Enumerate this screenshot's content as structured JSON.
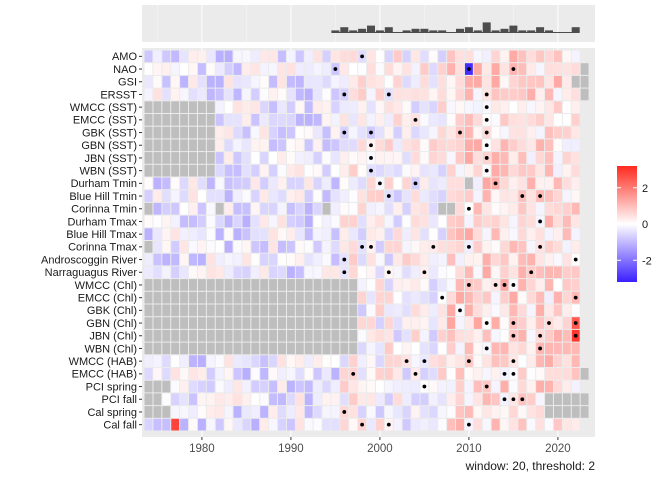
{
  "chart_data": {
    "type": "heatmap",
    "title": "",
    "xlabel": "",
    "ylabel": "",
    "caption": "window: 20, threshold: 2",
    "x_ticks": [
      1980,
      1990,
      2000,
      2010,
      2020
    ],
    "xlim": [
      1973.5,
      2025
    ],
    "row_names": [
      "AMO",
      "NAO",
      "GSI",
      "ERSST",
      "WMCC (SST)",
      "EMCC (SST)",
      "GBK (SST)",
      "GBN (SST)",
      "JBN (SST)",
      "WBN (SST)",
      "Durham Tmin",
      "Blue Hill Tmin",
      "Corinna Tmin",
      "Durham Tmax",
      "Blue Hill Tmax",
      "Corinna Tmax",
      "Androscoggin River",
      "Narraguagus River",
      "WMCC (Chl)",
      "EMCC (Chl)",
      "GBK (Chl)",
      "GBN (Chl)",
      "JBN (Chl)",
      "WBN (Chl)",
      "WMCC (HAB)",
      "EMCC (HAB)",
      "PCI spring",
      "PCI fall",
      "Cal spring",
      "Cal fall"
    ],
    "rows": [
      {
        "name": "AMO",
        "start": 1974,
        "end": 2022,
        "missing": [],
        "points": [
          1998
        ],
        "strong": {}
      },
      {
        "name": "NAO",
        "start": 1974,
        "end": 2022,
        "missing": [
          2023
        ],
        "points": [
          1995,
          2010,
          2015
        ],
        "strong": {
          "2010": -3
        }
      },
      {
        "name": "GSI",
        "start": 1974,
        "end": 2022,
        "missing": [
          2022,
          2023
        ],
        "points": [],
        "strong": {}
      },
      {
        "name": "ERSST",
        "start": 1974,
        "end": 2022,
        "missing": [
          2023
        ],
        "points": [
          1996,
          2001,
          2012
        ],
        "strong": {}
      },
      {
        "name": "WMCC (SST)",
        "start": 1974,
        "end": 2022,
        "missing": [
          1974,
          1975,
          1976,
          1977,
          1978,
          1979,
          1980,
          1981
        ],
        "points": [
          2012
        ],
        "strong": {}
      },
      {
        "name": "EMCC (SST)",
        "start": 1974,
        "end": 2022,
        "missing": [
          1974,
          1975,
          1976,
          1977,
          1978,
          1979,
          1980,
          1981
        ],
        "points": [
          2004,
          2012
        ],
        "strong": {}
      },
      {
        "name": "GBK (SST)",
        "start": 1974,
        "end": 2022,
        "missing": [
          1974,
          1975,
          1976,
          1977,
          1978,
          1979,
          1980,
          1981
        ],
        "points": [
          1996,
          1999,
          2009,
          2012
        ],
        "strong": {}
      },
      {
        "name": "GBN (SST)",
        "start": 1974,
        "end": 2022,
        "missing": [
          1974,
          1975,
          1976,
          1977,
          1978,
          1979,
          1980,
          1981
        ],
        "points": [
          1999,
          2012
        ],
        "strong": {}
      },
      {
        "name": "JBN (SST)",
        "start": 1974,
        "end": 2022,
        "missing": [
          1974,
          1975,
          1976,
          1977,
          1978,
          1979,
          1980,
          1981
        ],
        "points": [
          1999,
          2012
        ],
        "strong": {}
      },
      {
        "name": "WBN (SST)",
        "start": 1974,
        "end": 2022,
        "missing": [
          1974,
          1975,
          1976,
          1977,
          1978,
          1979,
          1980,
          1981
        ],
        "points": [
          1999,
          2012
        ],
        "strong": {}
      },
      {
        "name": "Durham Tmin",
        "start": 1974,
        "end": 2022,
        "missing": [
          2010
        ],
        "points": [
          2000,
          2004,
          2013
        ],
        "strong": {}
      },
      {
        "name": "Blue Hill Tmin",
        "start": 1974,
        "end": 2022,
        "missing": [],
        "points": [
          2001,
          2016,
          2018
        ],
        "strong": {}
      },
      {
        "name": "Corinna Tmin",
        "start": 1974,
        "end": 2022,
        "missing": [
          1974,
          1982,
          1994,
          2007,
          2008
        ],
        "points": [
          2010
        ],
        "strong": {}
      },
      {
        "name": "Durham Tmax",
        "start": 1974,
        "end": 2022,
        "missing": [],
        "points": [
          2018
        ],
        "strong": {}
      },
      {
        "name": "Blue Hill Tmax",
        "start": 1974,
        "end": 2022,
        "missing": [],
        "points": [],
        "strong": {}
      },
      {
        "name": "Corinna Tmax",
        "start": 1974,
        "end": 2022,
        "missing": [
          1974
        ],
        "points": [
          1998,
          1999,
          2006,
          2010,
          2018
        ],
        "strong": {}
      },
      {
        "name": "Androscoggin River",
        "start": 1974,
        "end": 2022,
        "missing": [],
        "points": [
          1996,
          2022
        ],
        "strong": {}
      },
      {
        "name": "Narraguagus River",
        "start": 1974,
        "end": 2022,
        "missing": [],
        "points": [
          1996,
          2001,
          2005,
          2017
        ],
        "strong": {}
      },
      {
        "name": "WMCC (Chl)",
        "start": 1974,
        "end": 2022,
        "missing": [
          1974,
          1975,
          1976,
          1977,
          1978,
          1979,
          1980,
          1981,
          1982,
          1983,
          1984,
          1985,
          1986,
          1987,
          1988,
          1989,
          1990,
          1991,
          1992,
          1993,
          1994,
          1995,
          1996,
          1997
        ],
        "points": [
          2010,
          2013,
          2014,
          2015
        ],
        "strong": {}
      },
      {
        "name": "EMCC (Chl)",
        "start": 1974,
        "end": 2022,
        "missing": [
          1974,
          1975,
          1976,
          1977,
          1978,
          1979,
          1980,
          1981,
          1982,
          1983,
          1984,
          1985,
          1986,
          1987,
          1988,
          1989,
          1990,
          1991,
          1992,
          1993,
          1994,
          1995,
          1996,
          1997
        ],
        "points": [
          2007,
          2022
        ],
        "strong": {}
      },
      {
        "name": "GBK (Chl)",
        "start": 1974,
        "end": 2022,
        "missing": [
          1974,
          1975,
          1976,
          1977,
          1978,
          1979,
          1980,
          1981,
          1982,
          1983,
          1984,
          1985,
          1986,
          1987,
          1988,
          1989,
          1990,
          1991,
          1992,
          1993,
          1994,
          1995,
          1996,
          1997
        ],
        "points": [
          2009
        ],
        "strong": {}
      },
      {
        "name": "GBN (Chl)",
        "start": 1974,
        "end": 2022,
        "missing": [
          1974,
          1975,
          1976,
          1977,
          1978,
          1979,
          1980,
          1981,
          1982,
          1983,
          1984,
          1985,
          1986,
          1987,
          1988,
          1989,
          1990,
          1991,
          1992,
          1993,
          1994,
          1995,
          1996,
          1997
        ],
        "points": [
          2012,
          2015,
          2019,
          2022
        ],
        "strong": {
          "2022": 2.5
        }
      },
      {
        "name": "JBN (Chl)",
        "start": 1974,
        "end": 2022,
        "missing": [
          1974,
          1975,
          1976,
          1977,
          1978,
          1979,
          1980,
          1981,
          1982,
          1983,
          1984,
          1985,
          1986,
          1987,
          1988,
          1989,
          1990,
          1991,
          1992,
          1993,
          1994,
          1995,
          1996,
          1997
        ],
        "points": [
          2015,
          2018,
          2022
        ],
        "strong": {
          "2022": 3
        }
      },
      {
        "name": "WBN (Chl)",
        "start": 1974,
        "end": 2022,
        "missing": [
          1974,
          1975,
          1976,
          1977,
          1978,
          1979,
          1980,
          1981,
          1982,
          1983,
          1984,
          1985,
          1986,
          1987,
          1988,
          1989,
          1990,
          1991,
          1992,
          1993,
          1994,
          1995,
          1996,
          1997
        ],
        "points": [
          2012,
          2018
        ],
        "strong": {}
      },
      {
        "name": "WMCC (HAB)",
        "start": 1974,
        "end": 2022,
        "missing": [],
        "points": [
          2003,
          2005,
          2010,
          2015
        ],
        "strong": {}
      },
      {
        "name": "EMCC (HAB)",
        "start": 1974,
        "end": 2022,
        "missing": [
          2023
        ],
        "points": [
          1997,
          2004,
          2014,
          2015
        ],
        "strong": {}
      },
      {
        "name": "PCI spring",
        "start": 1974,
        "end": 2022,
        "missing": [
          1974,
          1975,
          1976
        ],
        "points": [
          2005,
          2012
        ],
        "strong": {}
      },
      {
        "name": "PCI fall",
        "start": 1974,
        "end": 2022,
        "missing": [
          1974,
          1975,
          2019,
          2020,
          2021,
          2022,
          2023
        ],
        "points": [
          2014,
          2015,
          2016
        ],
        "strong": {}
      },
      {
        "name": "Cal spring",
        "start": 1974,
        "end": 2022,
        "missing": [
          1974,
          1975,
          1976,
          2019,
          2020,
          2021,
          2022,
          2023
        ],
        "points": [
          1996
        ],
        "strong": {}
      },
      {
        "name": "Cal fall",
        "start": 1974,
        "end": 2022,
        "missing": [],
        "points": [
          1998,
          2001,
          2010
        ],
        "strong": {
          "1977": 2.8
        }
      }
    ],
    "top_histogram": {
      "values": [
        [
          1995,
          1
        ],
        [
          1996,
          3
        ],
        [
          1997,
          1
        ],
        [
          1998,
          2
        ],
        [
          1999,
          4
        ],
        [
          2000,
          1
        ],
        [
          2001,
          3
        ],
        [
          2003,
          1
        ],
        [
          2004,
          2
        ],
        [
          2005,
          2
        ],
        [
          2006,
          1
        ],
        [
          2007,
          1
        ],
        [
          2009,
          2
        ],
        [
          2010,
          3
        ],
        [
          2011,
          1
        ],
        [
          2012,
          6
        ],
        [
          2013,
          1
        ],
        [
          2014,
          2
        ],
        [
          2015,
          4
        ],
        [
          2016,
          1
        ],
        [
          2017,
          1
        ],
        [
          2018,
          3
        ],
        [
          2019,
          1
        ],
        [
          2022,
          3
        ]
      ]
    },
    "legend": {
      "ticks": [
        2,
        0,
        -2
      ],
      "range": [
        -3.2,
        3.2
      ],
      "colors": {
        "high": "#ff2a1f",
        "mid": "#ffffff",
        "low": "#3a1fff"
      }
    },
    "colors": {
      "missing": "#bebebe",
      "panel": "#ebebeb",
      "grid": "#ffffff",
      "point": "#000000"
    }
  }
}
